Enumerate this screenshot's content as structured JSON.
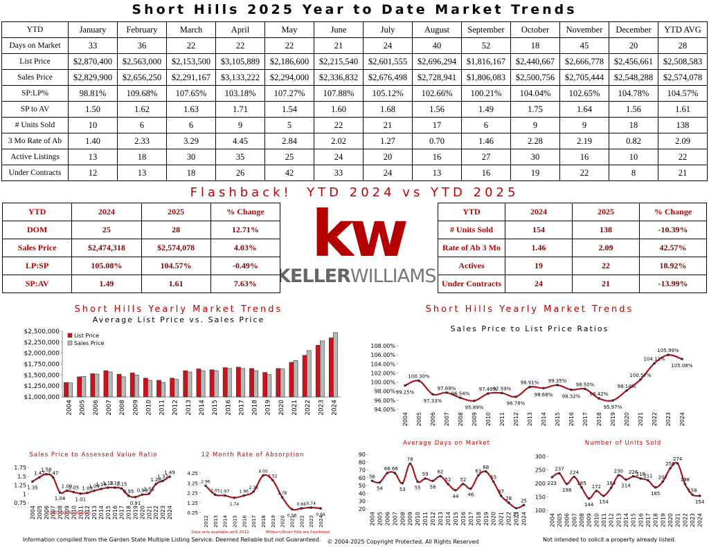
{
  "title": "Short Hills 2025 Year to Date Market Trends",
  "main_table": {
    "header": [
      "YTD",
      "January",
      "February",
      "March",
      "April",
      "May",
      "June",
      "July",
      "August",
      "September",
      "October",
      "November",
      "December",
      "YTD AVG"
    ],
    "rows": [
      [
        "Days on Market",
        "33",
        "36",
        "22",
        "22",
        "22",
        "21",
        "24",
        "40",
        "52",
        "18",
        "45",
        "20",
        "28"
      ],
      [
        "List Price",
        "$2,870,400",
        "$2,563,000",
        "$2,153,500",
        "$3,105,889",
        "$2,186,600",
        "$2,215,540",
        "$2,601,555",
        "$2,696,294",
        "$1,816,167",
        "$2,440,667",
        "$2,666,778",
        "$2,456,661",
        "$2,508,583"
      ],
      [
        "Sales Price",
        "$2,829,900",
        "$2,656,250",
        "$2,291,167",
        "$3,133,222",
        "$2,294,000",
        "$2,336,832",
        "$2,676,498",
        "$2,728,941",
        "$1,806,083",
        "$2,500,756",
        "$2,705,444",
        "$2,548,288",
        "$2,574,078"
      ],
      [
        "SP:LP%",
        "98.81%",
        "109.68%",
        "107.65%",
        "103.18%",
        "107.27%",
        "107.88%",
        "105.12%",
        "102.66%",
        "100.21%",
        "104.04%",
        "102.65%",
        "104.78%",
        "104.57%"
      ],
      [
        "SP to AV",
        "1.50",
        "1.62",
        "1.63",
        "1.71",
        "1.54",
        "1.60",
        "1.68",
        "1.56",
        "1.49",
        "1.75",
        "1.64",
        "1.56",
        "1.61"
      ],
      [
        "# Units Sold",
        "10",
        "6",
        "6",
        "9",
        "5",
        "22",
        "21",
        "17",
        "6",
        "9",
        "9",
        "18",
        "138"
      ],
      [
        "3 Mo Rate of Ab",
        "1.40",
        "2.33",
        "3.29",
        "4.45",
        "2.84",
        "2.02",
        "1.27",
        "0.70",
        "1.46",
        "2.28",
        "2.19",
        "0.82",
        "2.09"
      ],
      [
        "Active Listings",
        "13",
        "18",
        "30",
        "35",
        "25",
        "24",
        "20",
        "16",
        "27",
        "30",
        "16",
        "10",
        "22"
      ],
      [
        "Under Contracts",
        "12",
        "13",
        "18",
        "26",
        "42",
        "33",
        "24",
        "13",
        "16",
        "19",
        "22",
        "8",
        "21"
      ]
    ]
  },
  "flashback": {
    "title": "Flashback!  YTD 2024 vs YTD 2025",
    "left": {
      "header": [
        "YTD",
        "2024",
        "2025",
        "% Change"
      ],
      "rows": [
        [
          "DOM",
          "25",
          "28",
          "12.71%"
        ],
        [
          "Sales Price",
          "$2,474,318",
          "$2,574,078",
          "4.03%"
        ],
        [
          "LP:SP",
          "105.08%",
          "104.57%",
          "-0.49%"
        ],
        [
          "SP:AV",
          "1.49",
          "1.61",
          "7.63%"
        ]
      ]
    },
    "right": {
      "header": [
        "YTD",
        "2024",
        "2025",
        "% Change"
      ],
      "rows": [
        [
          "# Units Sold",
          "154",
          "138",
          "-10.39%"
        ],
        [
          "Rate of Ab 3 Mo",
          "1.46",
          "2.09",
          "42.57%"
        ],
        [
          "Actives",
          "19",
          "22",
          "18.92%"
        ],
        [
          "Under Contracts",
          "24",
          "21",
          "-13.99%"
        ]
      ]
    }
  },
  "logo": {
    "mark": "kw",
    "name_bold": "KELLER",
    "name_light": "WILLIAMS."
  },
  "chart_data": [
    {
      "type": "bar",
      "title": "Short Hills Yearly Market Trends",
      "subtitle": "Average List Price vs. Sales Price",
      "categories": [
        "2004",
        "2005",
        "2006",
        "2007",
        "2008",
        "2009",
        "2010",
        "2011",
        "2012",
        "2013",
        "2014",
        "2015",
        "2016",
        "2017",
        "2018",
        "2019",
        "2020",
        "2021",
        "2022",
        "2023",
        "2024"
      ],
      "series": [
        {
          "name": "List Price",
          "color": "#d0101a",
          "values": [
            1330000,
            1460000,
            1530000,
            1600000,
            1520000,
            1550000,
            1430000,
            1380000,
            1430000,
            1600000,
            1640000,
            1620000,
            1670000,
            1680000,
            1650000,
            1560000,
            1650000,
            1790000,
            1950000,
            2180000,
            2350000
          ]
        },
        {
          "name": "Sales Price",
          "color": "#b8b8b8",
          "values": [
            1320000,
            1470000,
            1520000,
            1570000,
            1460000,
            1500000,
            1380000,
            1330000,
            1400000,
            1570000,
            1600000,
            1600000,
            1650000,
            1650000,
            1600000,
            1510000,
            1640000,
            1830000,
            2060000,
            2280000,
            2470000
          ]
        }
      ],
      "ylim": [
        1000000,
        2500000
      ],
      "yticks": [
        {
          "value": 1000000,
          "label": "$1,000,000"
        },
        {
          "value": 1250000,
          "label": "$1,250,000"
        },
        {
          "value": 1500000,
          "label": "$1,500,000"
        },
        {
          "value": 1750000,
          "label": "$1,750,000"
        },
        {
          "value": 2000000,
          "label": "$2,000,000"
        },
        {
          "value": 2250000,
          "label": "$2,250,000"
        },
        {
          "value": 2500000,
          "label": "$2,500,000"
        }
      ],
      "legend": "top-left",
      "grid": false
    },
    {
      "type": "line",
      "title": "Short Hills Yearly Market Trends",
      "subtitle": "Sales Price to List Price Ratios",
      "color": "#b0121b",
      "categories": [
        "2004",
        "2005",
        "2006",
        "2007",
        "2008",
        "2009",
        "2010",
        "2011",
        "2012",
        "2013",
        "2014",
        "2015",
        "2016",
        "2017",
        "2018",
        "2019",
        "2020",
        "2021",
        "2022",
        "2023",
        "2024"
      ],
      "values": [
        99.25,
        100.3,
        97.33,
        97.69,
        96.54,
        95.89,
        97.49,
        97.59,
        96.78,
        98.91,
        98.68,
        99.35,
        98.32,
        98.5,
        96.42,
        95.97,
        98.14,
        100.57,
        104.12,
        105.99,
        105.08
      ],
      "value_labels": [
        "99.25%",
        "100.30%",
        "97.33%",
        "97.69%",
        "96.54%",
        "95.89%",
        "97.49%",
        "97.59%",
        "96.78%",
        "98.91%",
        "98.68%",
        "99.35%",
        "98.32%",
        "98.50%",
        "96.42%",
        "95.97%",
        "98.14%",
        "100.57%",
        "104.12%",
        "105.99%",
        "105.08%"
      ],
      "ylim": [
        94,
        108
      ],
      "yticks": [
        {
          "value": 94,
          "label": "94.00%"
        },
        {
          "value": 96,
          "label": "96.00%"
        },
        {
          "value": 98,
          "label": "98.00%"
        },
        {
          "value": 100,
          "label": "100.00%"
        },
        {
          "value": 102,
          "label": "102.00%"
        },
        {
          "value": 104,
          "label": "104.00%"
        },
        {
          "value": 106,
          "label": "106.00%"
        },
        {
          "value": 108,
          "label": "108.00%"
        }
      ],
      "grid": false
    },
    {
      "type": "line",
      "title": "Sales Price to Assessed Value Ratio",
      "color": "#b0121b",
      "notes": [
        "*2007 Tax Revaluation"
      ],
      "categories": [
        "2004",
        "2005",
        "2006",
        "2007",
        "2008",
        "2009",
        "2010",
        "2011",
        "2012",
        "2013",
        "2014",
        "2015",
        "2016",
        "2017",
        "2018",
        "2019",
        "2020",
        "2021",
        "2022",
        "2023",
        "2024"
      ],
      "values": [
        1.35,
        1.47,
        1.56,
        1.47,
        1.04,
        1.09,
        1.05,
        1.01,
        1.03,
        1.09,
        1.14,
        1.18,
        1.18,
        1.15,
        0.95,
        0.91,
        0.98,
        1.01,
        1.28,
        1.37,
        1.49
      ],
      "ylim": [
        0.75,
        1.75
      ],
      "yticks": [
        0.75,
        1,
        1.25,
        1.5,
        1.75
      ],
      "grid": false
    },
    {
      "type": "line",
      "title": "12 Month Rate of Absorption",
      "color": "#b0121b",
      "notes": [
        "Data only available until 2012",
        "Millburn/Short Hills are Combined"
      ],
      "categories": [
        "2012",
        "2013",
        "2014",
        "2015",
        "2016",
        "2017",
        "2018",
        "2019",
        "2020",
        "2021",
        "2022",
        "2023",
        "2024"
      ],
      "values": [
        2.96,
        2.05,
        1.97,
        1.74,
        1.96,
        2.36,
        4.0,
        3.52,
        1.78,
        0.58,
        0.66,
        0.74,
        0.66
      ],
      "value_labels": [
        "2.96",
        "2.05",
        "1.97",
        "1.74",
        "1.96",
        "2.36",
        "4.00",
        "3.52",
        "1.78",
        "0.58",
        "0.66",
        "0.74",
        "0.66"
      ],
      "ylim": [
        0.25,
        4.25
      ],
      "yticks": [
        0.25,
        1.25,
        2.25,
        3.25,
        4.25
      ],
      "grid": false
    },
    {
      "type": "line",
      "title": "Average Days on Market",
      "color": "#b0121b",
      "categories": [
        "2004",
        "2005",
        "2006",
        "2007",
        "2008",
        "2009",
        "2010",
        "2011",
        "2012",
        "2013",
        "2014",
        "2015",
        "2016",
        "2017",
        "2018",
        "2019",
        "2020",
        "2021",
        "2022",
        "2023",
        "2024"
      ],
      "values": [
        56,
        54,
        66,
        66,
        53,
        78,
        55,
        59,
        56,
        62,
        52,
        44,
        52,
        46,
        63,
        68,
        55,
        37,
        28,
        21,
        25
      ],
      "ylim": [
        20,
        90
      ],
      "yticks": [
        20,
        30,
        40,
        50,
        60,
        70,
        80,
        90
      ],
      "grid": false
    },
    {
      "type": "line",
      "title": "Number of Units Sold",
      "color": "#b0121b",
      "categories": [
        "2004",
        "2005",
        "2006",
        "2007",
        "2008",
        "2009",
        "2010",
        "2011",
        "2012",
        "2013",
        "2014",
        "2015",
        "2016",
        "2017",
        "2018",
        "2019",
        "2020",
        "2021",
        "2022",
        "2023",
        "2024"
      ],
      "values": [
        223,
        237,
        198,
        224,
        185,
        144,
        172,
        154,
        184,
        230,
        214,
        226,
        218,
        211,
        185,
        207,
        256,
        274,
        198,
        158,
        154
      ],
      "ylim": [
        100,
        300
      ],
      "yticks": [
        100,
        150,
        200,
        250,
        300
      ],
      "grid": false
    }
  ],
  "footer": {
    "source": "Information compiled from the Garden State Multiple Listing Service.  Deemed Reliable but not Guaranteed.",
    "copyright": "© 2004-2025 Copyright Protected.  All Rights Reserved",
    "disclaimer": "Not intended to solicit a property already listed."
  }
}
